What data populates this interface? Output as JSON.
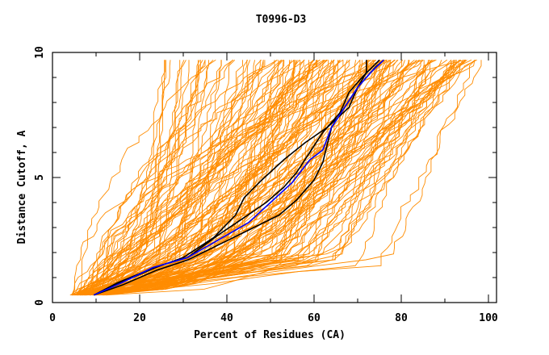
{
  "chart_data": {
    "type": "line",
    "title": "T0996-D3",
    "xlabel": "Percent of Residues (CA)",
    "ylabel": "Distance Cutoff, A",
    "xlim": [
      0,
      100
    ],
    "ylim": [
      0,
      10
    ],
    "x_ticks": [
      0,
      20,
      40,
      60,
      80,
      100
    ],
    "x_minor_ticks": [
      10,
      30,
      50,
      70,
      90
    ],
    "y_ticks": [
      0,
      5,
      10
    ],
    "y_minor_ticks": [
      1,
      2,
      3,
      4,
      6,
      7,
      8,
      9
    ],
    "grid": false,
    "legend": "none",
    "colors": {
      "background_models": "#ff8c00",
      "highlight_models": "#000000",
      "selected_model": "#0000ff",
      "axes": "#000000"
    },
    "background_models": {
      "description": "Many orange cumulative distance-cutoff curves (one per model), starting near 0.3 A and ending near 9.7 A",
      "count": 160,
      "start_percent_range": [
        4,
        12
      ],
      "end_percent_range": [
        15,
        100
      ],
      "y_start": 0.3,
      "y_end": 9.7
    },
    "series": [
      {
        "name": "highlight-1",
        "color": "#000000",
        "points": [
          [
            9.5,
            0.3
          ],
          [
            15,
            0.8
          ],
          [
            22,
            1.3
          ],
          [
            30,
            1.8
          ],
          [
            37,
            2.6
          ],
          [
            42,
            3.5
          ],
          [
            44,
            4.2
          ],
          [
            48,
            4.9
          ],
          [
            53,
            5.7
          ],
          [
            58,
            6.4
          ],
          [
            63,
            7.0
          ],
          [
            68,
            7.8
          ],
          [
            70,
            8.6
          ],
          [
            72,
            9.2
          ],
          [
            72,
            9.7
          ]
        ]
      },
      {
        "name": "highlight-2",
        "color": "#000000",
        "points": [
          [
            9.5,
            0.3
          ],
          [
            16,
            0.7
          ],
          [
            24,
            1.3
          ],
          [
            31,
            1.7
          ],
          [
            38,
            2.3
          ],
          [
            45,
            2.9
          ],
          [
            52,
            3.5
          ],
          [
            56,
            4.1
          ],
          [
            60,
            4.9
          ],
          [
            62,
            5.6
          ],
          [
            63,
            6.3
          ],
          [
            64,
            7.0
          ],
          [
            67,
            7.8
          ],
          [
            70,
            8.6
          ],
          [
            74,
            9.4
          ],
          [
            76,
            9.7
          ]
        ]
      },
      {
        "name": "highlight-3",
        "color": "#000000",
        "points": [
          [
            9.5,
            0.3
          ],
          [
            17,
            0.9
          ],
          [
            25,
            1.5
          ],
          [
            31,
            1.8
          ],
          [
            38,
            2.7
          ],
          [
            44,
            3.4
          ],
          [
            49,
            4.0
          ],
          [
            53,
            4.6
          ],
          [
            56,
            5.2
          ],
          [
            59,
            6.0
          ],
          [
            62,
            6.8
          ],
          [
            66,
            7.6
          ],
          [
            68,
            8.4
          ],
          [
            71,
            9.0
          ],
          [
            75,
            9.7
          ]
        ]
      },
      {
        "name": "selected-model",
        "color": "#0000ff",
        "points": [
          [
            9.5,
            0.3
          ],
          [
            16,
            0.8
          ],
          [
            23,
            1.4
          ],
          [
            31,
            1.8
          ],
          [
            39,
            2.6
          ],
          [
            45,
            3.2
          ],
          [
            50,
            4.0
          ],
          [
            55,
            4.8
          ],
          [
            59,
            5.7
          ],
          [
            62,
            6.1
          ],
          [
            64,
            7.0
          ],
          [
            67,
            7.8
          ],
          [
            70,
            8.6
          ],
          [
            73,
            9.2
          ],
          [
            76,
            9.7
          ]
        ]
      }
    ]
  }
}
